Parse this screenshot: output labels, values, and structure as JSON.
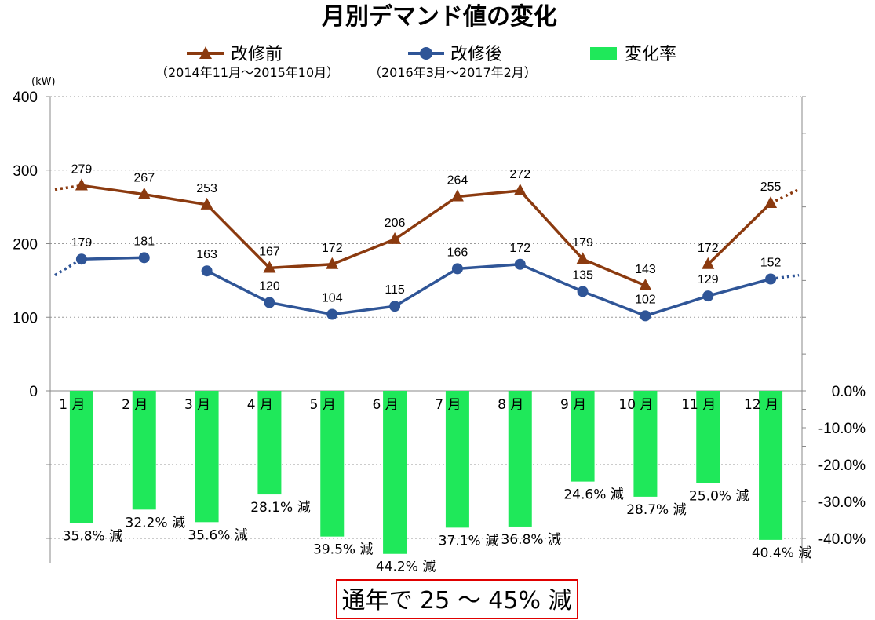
{
  "chart_data": {
    "type": "line+bar",
    "title": "月別デマンド値の変化",
    "unit": "(kW)",
    "categories": [
      "1 月",
      "2 月",
      "3 月",
      "4 月",
      "5 月",
      "6 月",
      "7 月",
      "8 月",
      "9 月",
      "10 月",
      "11 月",
      "12 月"
    ],
    "series": [
      {
        "name": "改修前",
        "period": "（2014年11月～2015年10月）",
        "type": "line",
        "marker": "triangle",
        "color": "#8B3A0F",
        "values": [
          279,
          267,
          253,
          167,
          172,
          206,
          264,
          272,
          179,
          143,
          172,
          255
        ],
        "segments": [
          [
            0,
            9
          ],
          [
            10,
            11
          ]
        ]
      },
      {
        "name": "改修後",
        "period": "（2016年3月～2017年2月）",
        "type": "line",
        "marker": "circle",
        "color": "#2F5597",
        "values": [
          179,
          181,
          163,
          120,
          104,
          115,
          166,
          172,
          135,
          102,
          129,
          152
        ],
        "segments": [
          [
            0,
            1
          ],
          [
            2,
            11
          ]
        ]
      },
      {
        "name": "変化率",
        "type": "bar",
        "color": "#1FE85A",
        "values": [
          -35.8,
          -32.2,
          -35.6,
          -28.1,
          -39.5,
          -44.2,
          -37.1,
          -36.8,
          -24.6,
          -28.7,
          -25.0,
          -40.4
        ],
        "labels": [
          "35.8% 減",
          "32.2% 減",
          "35.6% 減",
          "28.1% 減",
          "39.5% 減",
          "44.2% 減",
          "37.1% 減",
          "36.8% 減",
          "24.6% 減",
          "28.7% 減",
          "25.0% 減",
          "40.4% 減"
        ]
      }
    ],
    "y_left": {
      "ylim": [
        0,
        400
      ],
      "ticks": [
        "0",
        "100",
        "200",
        "300",
        "400"
      ]
    },
    "y_right": {
      "ylim": [
        -40,
        0
      ],
      "ticks": [
        "0.0%",
        "-10.0%",
        "-20.0%",
        "-30.0%",
        "-40.0%"
      ]
    },
    "grid": true,
    "legend_position": "top"
  },
  "summary": "通年で 25 ～ 45% 減"
}
